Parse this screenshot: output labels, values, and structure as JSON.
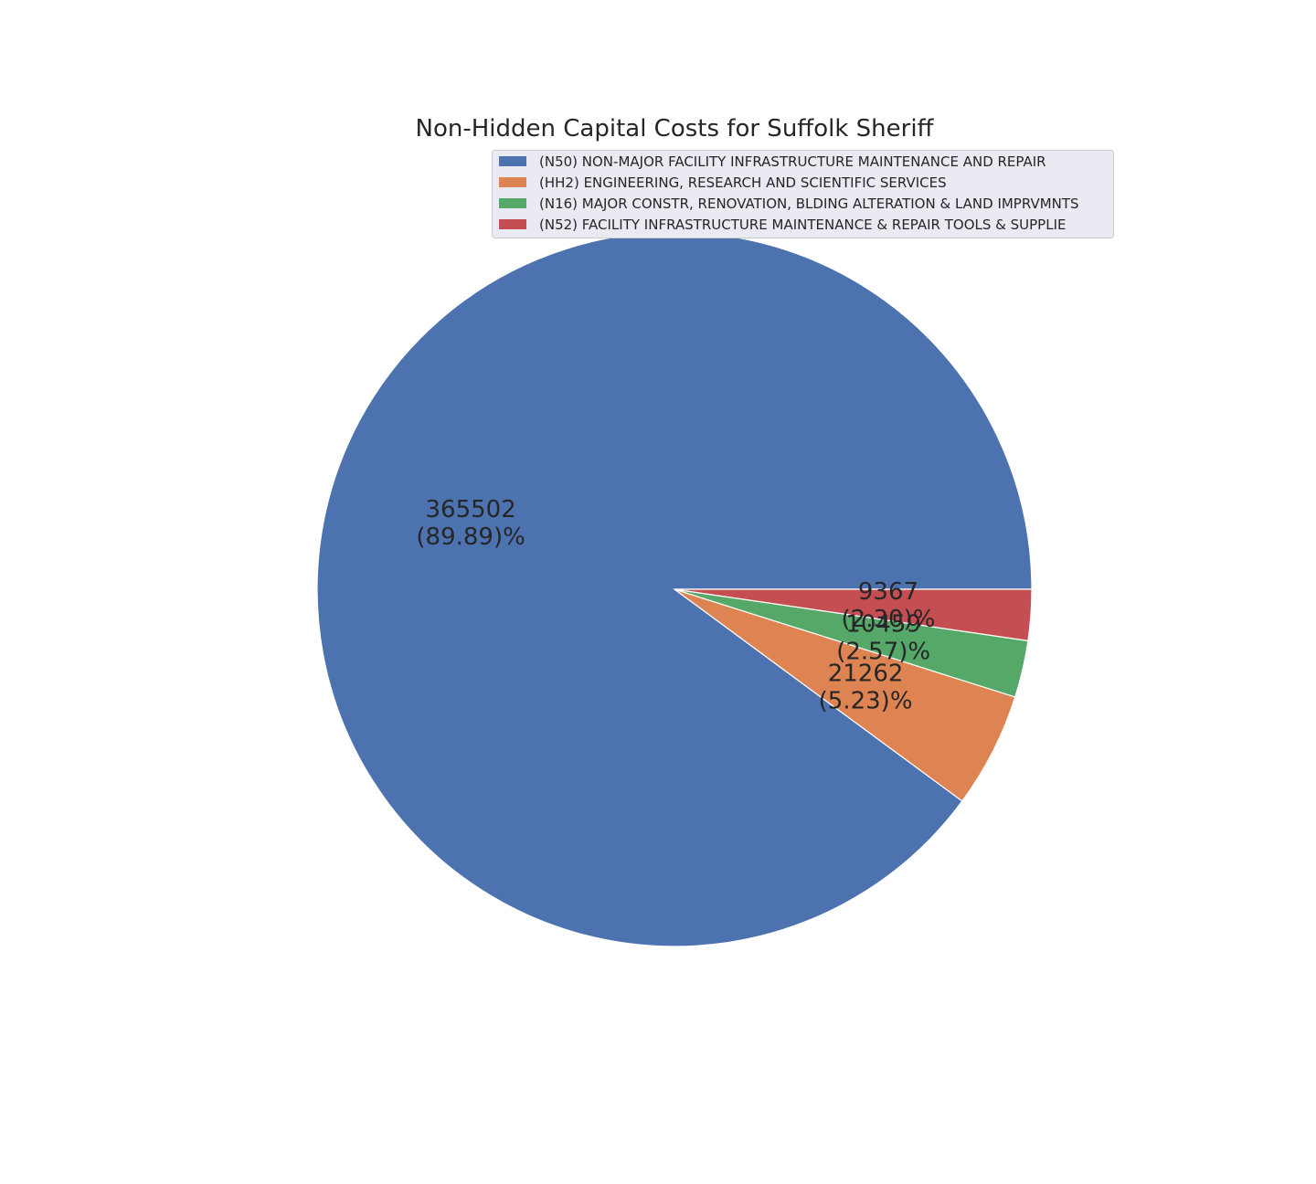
{
  "chart_data": {
    "type": "pie",
    "title": "Non-Hidden Capital Costs for Suffolk Sheriff",
    "categories": [
      "(N50) NON-MAJOR FACILITY INFRASTRUCTURE MAINTENANCE AND REPAIR",
      "(HH2) ENGINEERING, RESEARCH AND SCIENTIFIC SERVICES",
      "(N16) MAJOR CONSTR, RENOVATION, BLDING ALTERATION & LAND IMPRVMNTS",
      "(N52) FACILITY INFRASTRUCTURE MAINTENANCE & REPAIR TOOLS & SUPPLIE"
    ],
    "values": [
      365502,
      21262,
      10459,
      9367
    ],
    "slice_labels": [
      {
        "value": "365502",
        "percent": "(89.89)%"
      },
      {
        "value": "21262",
        "percent": "(5.23)%"
      },
      {
        "value": "10459",
        "percent": "(2.57)%"
      },
      {
        "value": "9367",
        "percent": "(2.30)%"
      }
    ],
    "colors": [
      "#4c72b0",
      "#dd8452",
      "#55a868",
      "#c44e52"
    ],
    "legend": {
      "location": "top-right",
      "background": "#eaeaf2"
    },
    "start_angle_deg": 0,
    "direction": "counterclockwise"
  }
}
